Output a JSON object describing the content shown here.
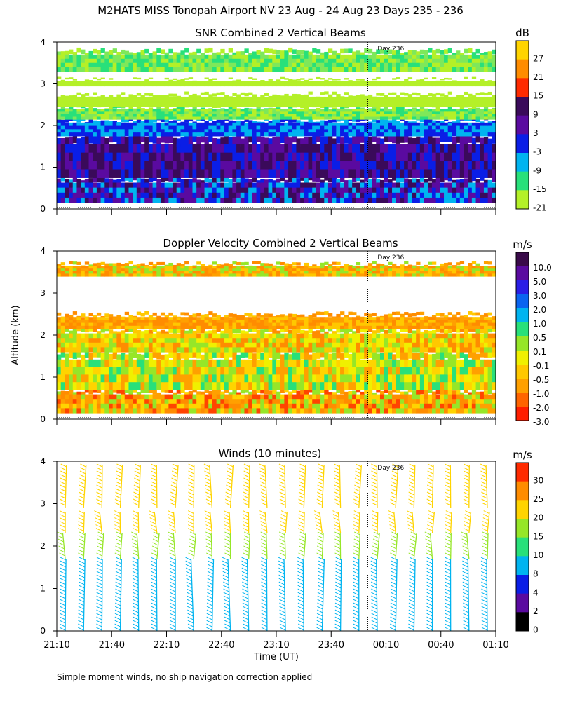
{
  "header": {
    "title": "M2HATS MISS Tonopah Airport NV  23 Aug - 24 Aug 23 Days 235 - 236"
  },
  "y_axis_label": "Altitude (km)",
  "x_axis_label": "Time (UT)",
  "x_tick_labels": [
    "21:10",
    "21:40",
    "22:10",
    "22:40",
    "23:10",
    "23:40",
    "00:10",
    "00:40",
    "01:10"
  ],
  "day_marker_label": "Day 236",
  "footnote": "Simple moment winds, no ship navigation correction applied",
  "chart_data": [
    {
      "type": "heatmap",
      "title": "SNR Combined 2 Vertical Beams",
      "ylabel": "Altitude (km)",
      "ylim": [
        0,
        4
      ],
      "yticks": [
        "0",
        "1",
        "2",
        "3",
        "4"
      ],
      "x_start_time": "21:10",
      "x_end_time": "01:10",
      "day_marker_time": "00:00",
      "colorbar": {
        "unit": "dB",
        "tick_labels": [
          "27",
          "21",
          "15",
          "9",
          "3",
          "-3",
          "-9",
          "-15",
          "-21"
        ],
        "colors": [
          "#ffd400",
          "#ff8c00",
          "#ff2a00",
          "#3a0a5a",
          "#5a0aa0",
          "#0a1ee6",
          "#00b4f0",
          "#28e07a",
          "#b4f028"
        ]
      },
      "layers": [
        {
          "range_km": [
            0.15,
            0.75
          ],
          "colors": [
            "#3a0a5a",
            "#5a0aa0",
            "#0a1ee6",
            "#00b4f0"
          ]
        },
        {
          "range_km": [
            0.75,
            1.75
          ],
          "colors": [
            "#3a0a5a",
            "#5a0aa0",
            "#0a1ee6"
          ]
        },
        {
          "range_km": [
            1.75,
            2.15
          ],
          "colors": [
            "#0a1ee6",
            "#00b4f0"
          ]
        },
        {
          "range_km": [
            2.15,
            2.45
          ],
          "colors": [
            "#28e07a",
            "#7ee85a",
            "#b4f028"
          ]
        },
        {
          "range_km": [
            2.45,
            2.75
          ],
          "colors": [
            "#b4f028"
          ]
        },
        {
          "range_km": [
            2.95,
            3.1
          ],
          "colors": [
            "#b4f028"
          ]
        },
        {
          "range_km": [
            3.3,
            3.8
          ],
          "colors": [
            "#28e07a",
            "#b4f028",
            "#7ee85a"
          ]
        }
      ]
    },
    {
      "type": "heatmap",
      "title": "Doppler Velocity Combined 2 Vertical Beams",
      "ylabel": "Altitude (km)",
      "ylim": [
        0,
        4
      ],
      "yticks": [
        "0",
        "1",
        "2",
        "3",
        "4"
      ],
      "x_start_time": "21:10",
      "x_end_time": "01:10",
      "day_marker_time": "00:00",
      "colorbar": {
        "unit": "m/s",
        "tick_labels": [
          "10.0",
          "5.0",
          "3.0",
          "2.0",
          "1.0",
          "0.5",
          "0.1",
          "-0.1",
          "-0.5",
          "-1.0",
          "-2.0",
          "-3.0"
        ],
        "colors": [
          "#3a0a4a",
          "#5a0aa0",
          "#2a1ee6",
          "#0a64f0",
          "#00b4f0",
          "#28e07a",
          "#96e628",
          "#f0f000",
          "#ffc800",
          "#ffa000",
          "#ff6400",
          "#ff1e00"
        ]
      },
      "layers": [
        {
          "range_km": [
            0.15,
            0.7
          ],
          "colors": [
            "#ff8c00",
            "#ffd400",
            "#ff4400",
            "#96e628",
            "#ffa000"
          ]
        },
        {
          "range_km": [
            0.7,
            1.6
          ],
          "colors": [
            "#ffd400",
            "#96e628",
            "#ffa000",
            "#28e07a",
            "#f0f000"
          ]
        },
        {
          "range_km": [
            1.6,
            2.15
          ],
          "colors": [
            "#ffc800",
            "#ff8c00",
            "#f0f000",
            "#96e628"
          ]
        },
        {
          "range_km": [
            2.15,
            2.5
          ],
          "colors": [
            "#ff8c00",
            "#ffa000",
            "#ffc800"
          ]
        },
        {
          "range_km": [
            3.4,
            3.7
          ],
          "colors": [
            "#ffa000",
            "#ffc800",
            "#96e628",
            "#ff8c00"
          ]
        }
      ]
    },
    {
      "type": "wind_barbs",
      "title": "Winds (10 minutes)",
      "ylabel": "Altitude (km)",
      "ylim": [
        0,
        4
      ],
      "yticks": [
        "0",
        "1",
        "2",
        "3",
        "4"
      ],
      "x_start_time": "21:10",
      "x_end_time": "01:10",
      "day_marker_time": "00:00",
      "profile_count": 24,
      "colorbar": {
        "unit": "m/s",
        "tick_labels": [
          "30",
          "25",
          "20",
          "15",
          "10",
          "8",
          "4",
          "2",
          "0"
        ],
        "colors": [
          "#ff2a00",
          "#ff8c00",
          "#ffd400",
          "#96e628",
          "#28e07a",
          "#00b4f0",
          "#0a1ee6",
          "#5a0aa0",
          "#000000"
        ]
      },
      "bands": [
        {
          "range_km": [
            0.0,
            1.7
          ],
          "speed_ms": 7
        },
        {
          "range_km": [
            1.7,
            2.3
          ],
          "speed_ms": 12
        },
        {
          "range_km": [
            2.3,
            2.8
          ],
          "speed_ms": 16
        },
        {
          "range_km": [
            2.9,
            3.9
          ],
          "speed_ms": 19
        }
      ]
    }
  ]
}
